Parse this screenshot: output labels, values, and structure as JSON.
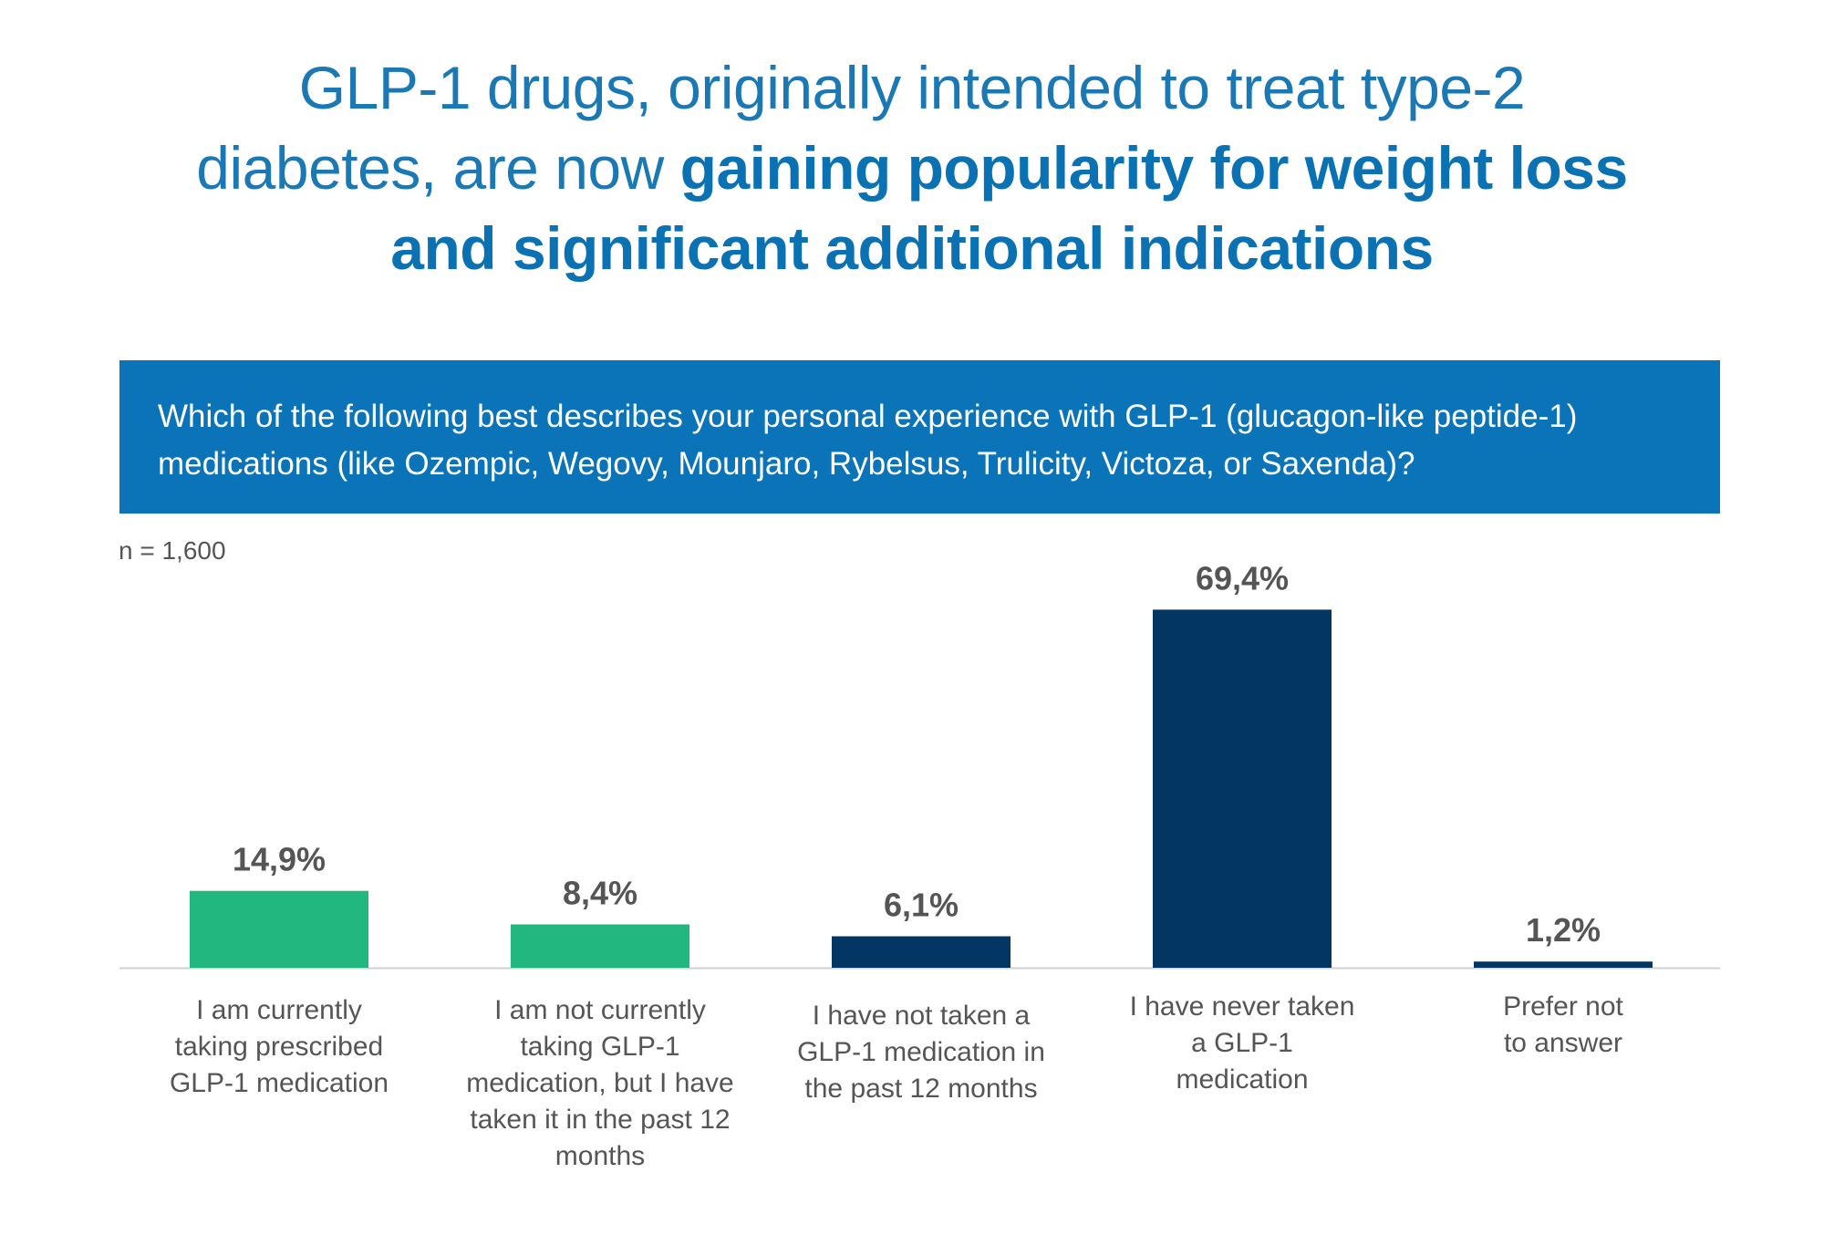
{
  "title": {
    "line1": "GLP-1 drugs, originally intended to treat type-2",
    "line2_regular": "diabetes, are now ",
    "line2_bold": "gaining popularity for weight loss",
    "line3_bold": "and significant additional indications"
  },
  "question": {
    "line1": "Which of the following best describes your personal experience with GLP-1 (glucagon-like peptide-1)",
    "line2": "medications (like Ozempic, Wegovy, Mounjaro, Rybelsus, Trulicity, Victoza, or Saxenda)?"
  },
  "sample_size": "n = 1,600",
  "colors": {
    "title": "#1a78b4",
    "question_bg": "#0b74b8",
    "green": "#21b77f",
    "navy": "#033663",
    "label_text": "#555555",
    "axis": "#d0d0d0"
  },
  "chart_data": {
    "type": "bar",
    "title": "",
    "xlabel": "",
    "ylabel": "",
    "ylim": [
      0,
      70
    ],
    "categories": [
      "I am currently taking prescribed GLP-1 medication",
      "I am not currently taking GLP-1 medication, but I have taken it in the past 12 months",
      "I have not taken a GLP-1 medication in the past 12 months",
      "I have never taken a GLP-1 medication",
      "Prefer not to answer"
    ],
    "category_lines": [
      [
        "I am currently",
        "taking prescribed",
        "GLP-1 medication"
      ],
      [
        "I am not currently",
        "taking GLP-1",
        "medication, but I have",
        "taken it in the past 12",
        "months"
      ],
      [
        "I have not taken a",
        "GLP-1 medication in",
        "the past 12 months"
      ],
      [
        "I have never taken",
        "a GLP-1",
        "medication"
      ],
      [
        "Prefer not",
        "to answer"
      ]
    ],
    "values": [
      14.9,
      8.4,
      6.1,
      69.4,
      1.2
    ],
    "value_labels": [
      "14,9%",
      "8,4%",
      "6,1%",
      "69,4%",
      "1,2%"
    ],
    "bar_colors": [
      "green",
      "green",
      "navy",
      "navy",
      "navy"
    ]
  }
}
